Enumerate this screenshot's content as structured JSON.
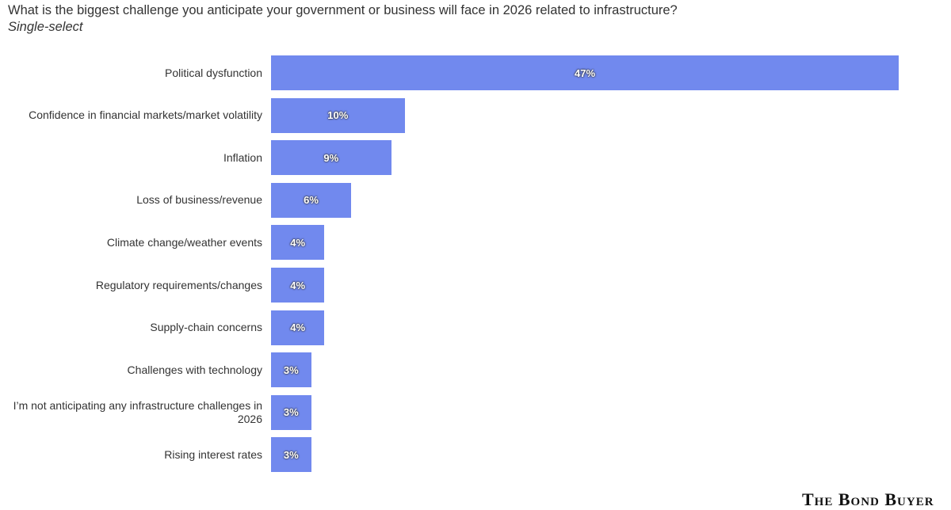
{
  "chart_data": {
    "type": "bar",
    "orientation": "horizontal",
    "title": "What is the biggest challenge you anticipate your government or business will face in 2026 related to infrastructure?",
    "subtitle": "Single-select",
    "categories": [
      "Political dysfunction",
      "Confidence in financial markets/market volatility",
      "Inflation",
      "Loss of business/revenue",
      "Climate change/weather events",
      "Regulatory requirements/changes",
      "Supply-chain concerns",
      "Challenges with technology",
      "I’m not anticipating any infrastructure challenges in 2026",
      "Rising interest rates"
    ],
    "values": [
      47,
      10,
      9,
      6,
      4,
      4,
      4,
      3,
      3,
      3
    ],
    "value_labels": [
      "47%",
      "10%",
      "9%",
      "6%",
      "4%",
      "4%",
      "4%",
      "3%",
      "3%",
      "3%"
    ],
    "color": "#7189ee",
    "logo": "The Bond Buyer"
  }
}
